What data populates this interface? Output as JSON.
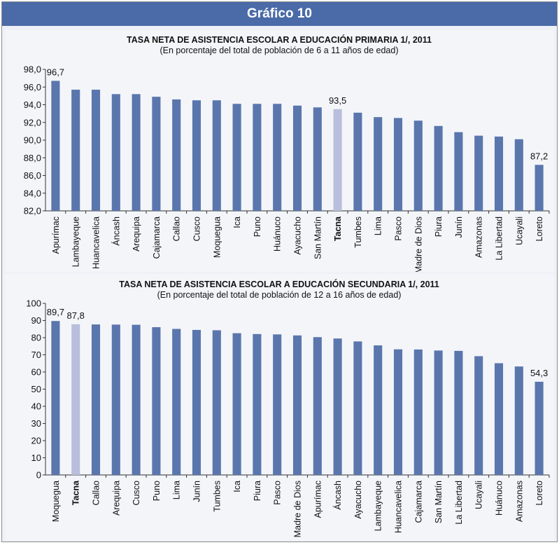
{
  "header": {
    "title": "Gráfico 10"
  },
  "colors": {
    "bar": "#5a76ad",
    "highlight": "#b9bedc",
    "axis": "#333333"
  },
  "chart_data": [
    {
      "type": "bar",
      "title": "TASA NETA DE ASISTENCIA ESCOLAR A EDUCACIÓN PRIMARIA 1/, 2011",
      "subtitle": "(En porcentaje del total de población de 6 a 11 años de edad)",
      "ylim": [
        82,
        98
      ],
      "yticks": [
        "82,0",
        "84,0",
        "86,0",
        "88,0",
        "90,0",
        "92,0",
        "94,0",
        "96,0",
        "98,0"
      ],
      "categories": [
        "Apurímac",
        "Lambayeque",
        "Huancavelica",
        "Áncash",
        "Arequipa",
        "Cajamarca",
        "Callao",
        "Cusco",
        "Moquegua",
        "Ica",
        "Puno",
        "Huánuco",
        "Ayacucho",
        "San Martín",
        "Tacna",
        "Tumbes",
        "Lima",
        "Pasco",
        "Madre de Dios",
        "Piura",
        "Junín",
        "Amazonas",
        "La Libertad",
        "Ucayali",
        "Loreto"
      ],
      "values": [
        96.7,
        95.7,
        95.7,
        95.2,
        95.2,
        94.9,
        94.6,
        94.5,
        94.5,
        94.1,
        94.1,
        94.1,
        93.9,
        93.7,
        93.5,
        93.1,
        92.6,
        92.5,
        92.2,
        91.6,
        90.9,
        90.5,
        90.4,
        90.1,
        87.2
      ],
      "highlight": "Tacna",
      "data_labels": [
        {
          "category": "Apurímac",
          "text": "96,7"
        },
        {
          "category": "Tacna",
          "text": "93,5"
        },
        {
          "category": "Loreto",
          "text": "87,2"
        }
      ]
    },
    {
      "type": "bar",
      "title": "TASA NETA DE ASISTENCIA ESCOLAR A EDUCACIÓN SECUNDARIA 1/, 2011",
      "subtitle": "(En porcentaje del total de población de 12 a 16 años de edad)",
      "ylim": [
        0,
        100
      ],
      "yticks": [
        "0",
        "10",
        "20",
        "30",
        "40",
        "50",
        "60",
        "70",
        "80",
        "90",
        "100"
      ],
      "categories": [
        "Moquegua",
        "Tacna",
        "Callao",
        "Arequipa",
        "Cusco",
        "Puno",
        "Lima",
        "Junín",
        "Tumbes",
        "Ica",
        "Piura",
        "Pasco",
        "Madre de Dios",
        "Apurímac",
        "Áncash",
        "Ayacucho",
        "Lambayeque",
        "Huancavelica",
        "Cajamarca",
        "San Martín",
        "La Libertad",
        "Ucayali",
        "Huánuco",
        "Amazonas",
        "Loreto"
      ],
      "values": [
        89.7,
        87.8,
        87.7,
        87.6,
        87.5,
        86.1,
        85.1,
        84.5,
        84.3,
        82.6,
        82.1,
        81.9,
        81.3,
        80.3,
        79.5,
        77.8,
        75.5,
        73.2,
        73.1,
        72.5,
        72.3,
        69.2,
        65.1,
        63.2,
        54.3
      ],
      "highlight": "Tacna",
      "data_labels": [
        {
          "category": "Moquegua",
          "text": "89,7"
        },
        {
          "category": "Tacna",
          "text": "87,8"
        },
        {
          "category": "Loreto",
          "text": "54,3"
        }
      ]
    }
  ]
}
